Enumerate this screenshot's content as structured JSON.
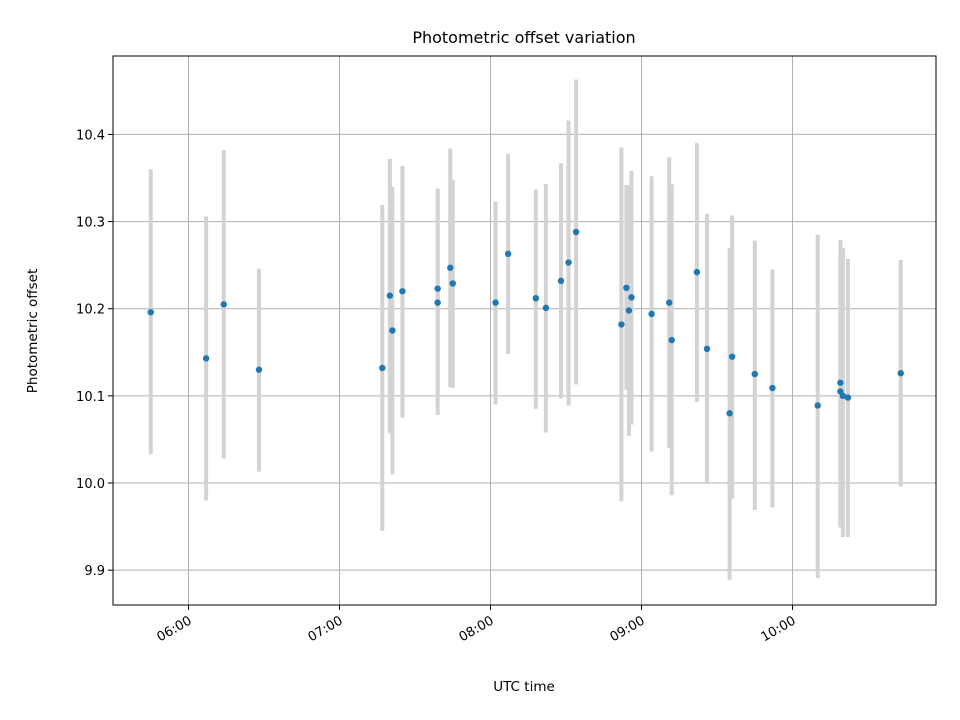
{
  "chart_data": {
    "type": "scatter",
    "title": "Photometric offset variation",
    "xlabel": "UTC time",
    "ylabel": "Photometric offset",
    "x_axis": "time (UTC, HH:MM)",
    "xlim": [
      "05:30",
      "10:57"
    ],
    "ylim": [
      9.86,
      10.49
    ],
    "grid": true,
    "point_color": "#1f77b4",
    "errorbar_color": "#d3d3d3",
    "x_ticks": [
      "06:00",
      "07:00",
      "08:00",
      "09:00",
      "10:00"
    ],
    "y_ticks": [
      "9.9",
      "10.0",
      "10.1",
      "10.2",
      "10.3",
      "10.4"
    ],
    "points": [
      {
        "t": "05:45",
        "y": 10.196,
        "lo": 10.033,
        "hi": 10.36
      },
      {
        "t": "06:07",
        "y": 10.143,
        "lo": 9.98,
        "hi": 10.306
      },
      {
        "t": "06:14",
        "y": 10.205,
        "lo": 10.028,
        "hi": 10.382
      },
      {
        "t": "06:28",
        "y": 10.13,
        "lo": 10.013,
        "hi": 10.246
      },
      {
        "t": "07:17",
        "y": 10.132,
        "lo": 9.945,
        "hi": 10.319
      },
      {
        "t": "07:20",
        "y": 10.215,
        "lo": 10.057,
        "hi": 10.372
      },
      {
        "t": "07:21",
        "y": 10.175,
        "lo": 10.01,
        "hi": 10.34
      },
      {
        "t": "07:25",
        "y": 10.22,
        "lo": 10.075,
        "hi": 10.364
      },
      {
        "t": "07:39",
        "y": 10.223,
        "lo": 10.108,
        "hi": 10.338
      },
      {
        "t": "07:39",
        "y": 10.207,
        "lo": 10.078,
        "hi": 10.335
      },
      {
        "t": "07:44",
        "y": 10.247,
        "lo": 10.11,
        "hi": 10.384
      },
      {
        "t": "07:45",
        "y": 10.229,
        "lo": 10.109,
        "hi": 10.348
      },
      {
        "t": "08:02",
        "y": 10.207,
        "lo": 10.09,
        "hi": 10.323
      },
      {
        "t": "08:07",
        "y": 10.263,
        "lo": 10.148,
        "hi": 10.378
      },
      {
        "t": "08:18",
        "y": 10.212,
        "lo": 10.085,
        "hi": 10.337
      },
      {
        "t": "08:22",
        "y": 10.201,
        "lo": 10.058,
        "hi": 10.343
      },
      {
        "t": "08:28",
        "y": 10.232,
        "lo": 10.097,
        "hi": 10.367
      },
      {
        "t": "08:31",
        "y": 10.253,
        "lo": 10.089,
        "hi": 10.416
      },
      {
        "t": "08:34",
        "y": 10.288,
        "lo": 10.113,
        "hi": 10.463
      },
      {
        "t": "08:52",
        "y": 10.182,
        "lo": 9.979,
        "hi": 10.385
      },
      {
        "t": "08:54",
        "y": 10.224,
        "lo": 10.107,
        "hi": 10.342
      },
      {
        "t": "08:55",
        "y": 10.198,
        "lo": 10.054,
        "hi": 10.342
      },
      {
        "t": "08:56",
        "y": 10.213,
        "lo": 10.067,
        "hi": 10.358
      },
      {
        "t": "09:04",
        "y": 10.194,
        "lo": 10.036,
        "hi": 10.352
      },
      {
        "t": "09:11",
        "y": 10.207,
        "lo": 10.04,
        "hi": 10.374
      },
      {
        "t": "09:12",
        "y": 10.164,
        "lo": 9.986,
        "hi": 10.343
      },
      {
        "t": "09:22",
        "y": 10.242,
        "lo": 10.093,
        "hi": 10.39
      },
      {
        "t": "09:26",
        "y": 10.154,
        "lo": 10.0,
        "hi": 10.309
      },
      {
        "t": "09:35",
        "y": 10.08,
        "lo": 9.889,
        "hi": 10.27
      },
      {
        "t": "09:36",
        "y": 10.145,
        "lo": 9.982,
        "hi": 10.307
      },
      {
        "t": "09:45",
        "y": 10.125,
        "lo": 9.969,
        "hi": 10.278
      },
      {
        "t": "09:52",
        "y": 10.109,
        "lo": 9.972,
        "hi": 10.245
      },
      {
        "t": "10:10",
        "y": 10.089,
        "lo": 9.891,
        "hi": 10.285
      },
      {
        "t": "10:19",
        "y": 10.115,
        "lo": 9.952,
        "hi": 10.279
      },
      {
        "t": "10:19",
        "y": 10.105,
        "lo": 9.949,
        "hi": 10.26
      },
      {
        "t": "10:20",
        "y": 10.1,
        "lo": 9.938,
        "hi": 10.27
      },
      {
        "t": "10:22",
        "y": 10.098,
        "lo": 9.938,
        "hi": 10.257
      },
      {
        "t": "10:43",
        "y": 10.126,
        "lo": 9.996,
        "hi": 10.256
      }
    ]
  }
}
